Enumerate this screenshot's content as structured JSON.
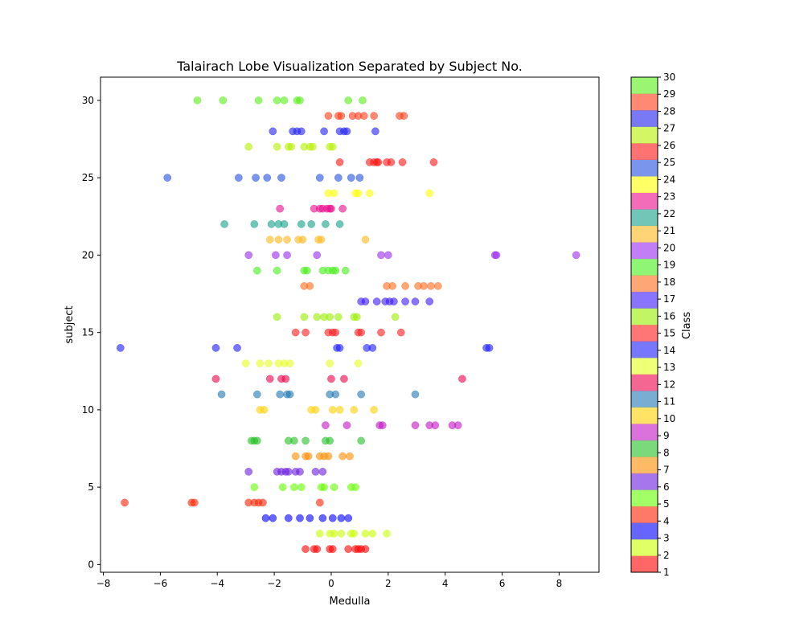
{
  "chart_data": {
    "type": "scatter",
    "title": "Talairach Lobe Visualization Separated by Subject No.",
    "xlabel": "Medulla",
    "ylabel": "subject",
    "xlim": [
      -8.1,
      9.4
    ],
    "ylim": [
      -0.5,
      31.5
    ],
    "xticks": [
      -8,
      -6,
      -4,
      -2,
      0,
      2,
      4,
      6,
      8
    ],
    "yticks": [
      0,
      5,
      10,
      15,
      20,
      25,
      30
    ],
    "grid": false,
    "colorbar": {
      "label": "Class",
      "ticks": [
        1,
        2,
        3,
        4,
        5,
        6,
        7,
        8,
        9,
        10,
        11,
        12,
        13,
        14,
        15,
        16,
        17,
        18,
        19,
        20,
        21,
        22,
        23,
        24,
        25,
        26,
        27,
        28,
        29,
        30
      ],
      "colors": [
        "#ff0000",
        "#ccff00",
        "#0000ff",
        "#ff2200",
        "#66ff00",
        "#6a1de0",
        "#ff8c00",
        "#22c022",
        "#c314c3",
        "#ffd000",
        "#1f77b4",
        "#f0004a",
        "#e5ff1a",
        "#1a1aff",
        "#ff1a1a",
        "#99ee00",
        "#3a18ff",
        "#ff6a1a",
        "#44ee18",
        "#9a28ec",
        "#ffb81a",
        "#14a088",
        "#ea0a8a",
        "#ffff00",
        "#1f4fe0",
        "#ff1414",
        "#b5f000",
        "#2020ee",
        "#ff3a14",
        "#55ee14"
      ],
      "alpha": 0.6
    },
    "series": [
      {
        "class": 1,
        "y": 1,
        "x": [
          -0.9,
          -0.6,
          -0.5,
          -0.05,
          0.05,
          0.6,
          0.85,
          0.95,
          1.05,
          1.2
        ]
      },
      {
        "class": 2,
        "y": 2,
        "x": [
          -0.4,
          -0.05,
          0.1,
          0.35,
          0.7,
          0.8,
          1.2,
          1.45,
          1.95
        ]
      },
      {
        "class": 3,
        "y": 3,
        "x": [
          -2.3,
          -2.05,
          -1.5,
          -1.1,
          -0.75,
          -0.3,
          0.05,
          0.35,
          0.6
        ]
      },
      {
        "class": 4,
        "y": 4,
        "x": [
          -7.25,
          -4.9,
          -4.8,
          -2.9,
          -2.7,
          -2.55,
          -2.4,
          -0.4
        ]
      },
      {
        "class": 5,
        "y": 5,
        "x": [
          -2.7,
          -1.7,
          -1.3,
          -1.05,
          -0.35,
          -0.25,
          0.1,
          0.7,
          0.85
        ]
      },
      {
        "class": 6,
        "y": 6,
        "x": [
          -2.9,
          -1.9,
          -1.75,
          -1.6,
          -1.5,
          -1.25,
          -1.1,
          -0.55,
          -0.3
        ]
      },
      {
        "class": 7,
        "y": 7,
        "x": [
          -1.25,
          -0.9,
          -0.8,
          -0.4,
          -0.25,
          -0.1,
          0.4,
          0.65
        ]
      },
      {
        "class": 8,
        "y": 8,
        "x": [
          -2.8,
          -2.7,
          -2.6,
          -1.5,
          -1.3,
          -0.9,
          -0.2,
          -0.05,
          1.05
        ]
      },
      {
        "class": 9,
        "y": 9,
        "x": [
          -0.2,
          0.55,
          1.7,
          1.8,
          2.95,
          3.45,
          3.65,
          4.25,
          4.45
        ]
      },
      {
        "class": 10,
        "y": 10,
        "x": [
          -2.5,
          -2.35,
          -0.7,
          -0.55,
          0.05,
          0.3,
          0.8,
          1.5
        ]
      },
      {
        "class": 11,
        "y": 11,
        "x": [
          -3.85,
          -2.6,
          -1.8,
          -1.55,
          -1.45,
          -0.05,
          0.15,
          1.05,
          2.95
        ]
      },
      {
        "class": 12,
        "y": 12,
        "x": [
          -4.05,
          -2.15,
          -1.75,
          -1.6,
          0.0,
          0.45,
          4.6
        ]
      },
      {
        "class": 13,
        "y": 13,
        "x": [
          -3.0,
          -2.5,
          -2.2,
          -1.85,
          -1.65,
          -1.45,
          -0.05,
          0.95
        ]
      },
      {
        "class": 14,
        "y": 14,
        "x": [
          -7.4,
          -4.05,
          -3.3,
          0.2,
          0.3,
          1.25,
          1.45,
          5.45,
          5.55
        ]
      },
      {
        "class": 15,
        "y": 15,
        "x": [
          -1.25,
          -0.9,
          -0.1,
          0.05,
          0.15,
          0.95,
          1.05,
          1.75,
          2.45
        ]
      },
      {
        "class": 16,
        "y": 16,
        "x": [
          -1.9,
          -0.95,
          -0.5,
          -0.25,
          -0.05,
          0.25,
          0.8,
          0.9,
          2.25
        ]
      },
      {
        "class": 17,
        "y": 17,
        "x": [
          1.05,
          1.2,
          1.6,
          1.9,
          2.05,
          2.2,
          2.6,
          2.95,
          3.45
        ]
      },
      {
        "class": 18,
        "y": 18,
        "x": [
          -0.95,
          -0.75,
          1.95,
          2.15,
          2.6,
          3.05,
          3.25,
          3.5,
          3.75
        ]
      },
      {
        "class": 19,
        "y": 19,
        "x": [
          -2.6,
          -1.9,
          -0.95,
          -0.85,
          -0.3,
          -0.1,
          0.05,
          0.15,
          0.5
        ]
      },
      {
        "class": 20,
        "y": 20,
        "x": [
          -2.9,
          -1.95,
          -1.55,
          -0.5,
          1.75,
          2.0,
          5.75,
          5.8,
          8.6
        ]
      },
      {
        "class": 21,
        "y": 21,
        "x": [
          -2.15,
          -1.85,
          -1.55,
          -1.15,
          -1.0,
          -0.45,
          -0.35,
          1.2
        ]
      },
      {
        "class": 22,
        "y": 22,
        "x": [
          -3.75,
          -2.7,
          -2.1,
          -1.85,
          -1.65,
          -1.05,
          -0.7,
          -0.2,
          0.3
        ]
      },
      {
        "class": 23,
        "y": 23,
        "x": [
          -1.8,
          -0.6,
          -0.4,
          -0.3,
          -0.15,
          -0.05,
          0.0,
          0.4
        ]
      },
      {
        "class": 24,
        "y": 24,
        "x": [
          -0.1,
          0.1,
          0.85,
          0.95,
          1.35,
          3.45
        ]
      },
      {
        "class": 25,
        "y": 25,
        "x": [
          -5.75,
          -3.25,
          -2.65,
          -2.25,
          -1.75,
          -0.4,
          0.25,
          0.7,
          1.0
        ]
      },
      {
        "class": 26,
        "y": 26,
        "x": [
          0.3,
          1.35,
          1.5,
          1.6,
          1.65,
          1.95,
          2.1,
          2.5,
          3.6
        ]
      },
      {
        "class": 27,
        "y": 27,
        "x": [
          -2.9,
          -1.9,
          -1.5,
          -1.4,
          -0.95,
          -0.75,
          -0.65,
          -0.05,
          0.05
        ]
      },
      {
        "class": 28,
        "y": 28,
        "x": [
          -2.05,
          -1.35,
          -1.2,
          -1.05,
          -0.25,
          0.3,
          0.45,
          0.55,
          1.55
        ]
      },
      {
        "class": 29,
        "y": 29,
        "x": [
          -0.1,
          0.25,
          0.35,
          0.75,
          0.95,
          1.15,
          1.5,
          2.4,
          2.55
        ]
      },
      {
        "class": 30,
        "y": 30,
        "x": [
          -4.7,
          -3.8,
          -2.55,
          -1.9,
          -1.65,
          -1.2,
          -1.1,
          0.6,
          1.1
        ]
      }
    ]
  }
}
